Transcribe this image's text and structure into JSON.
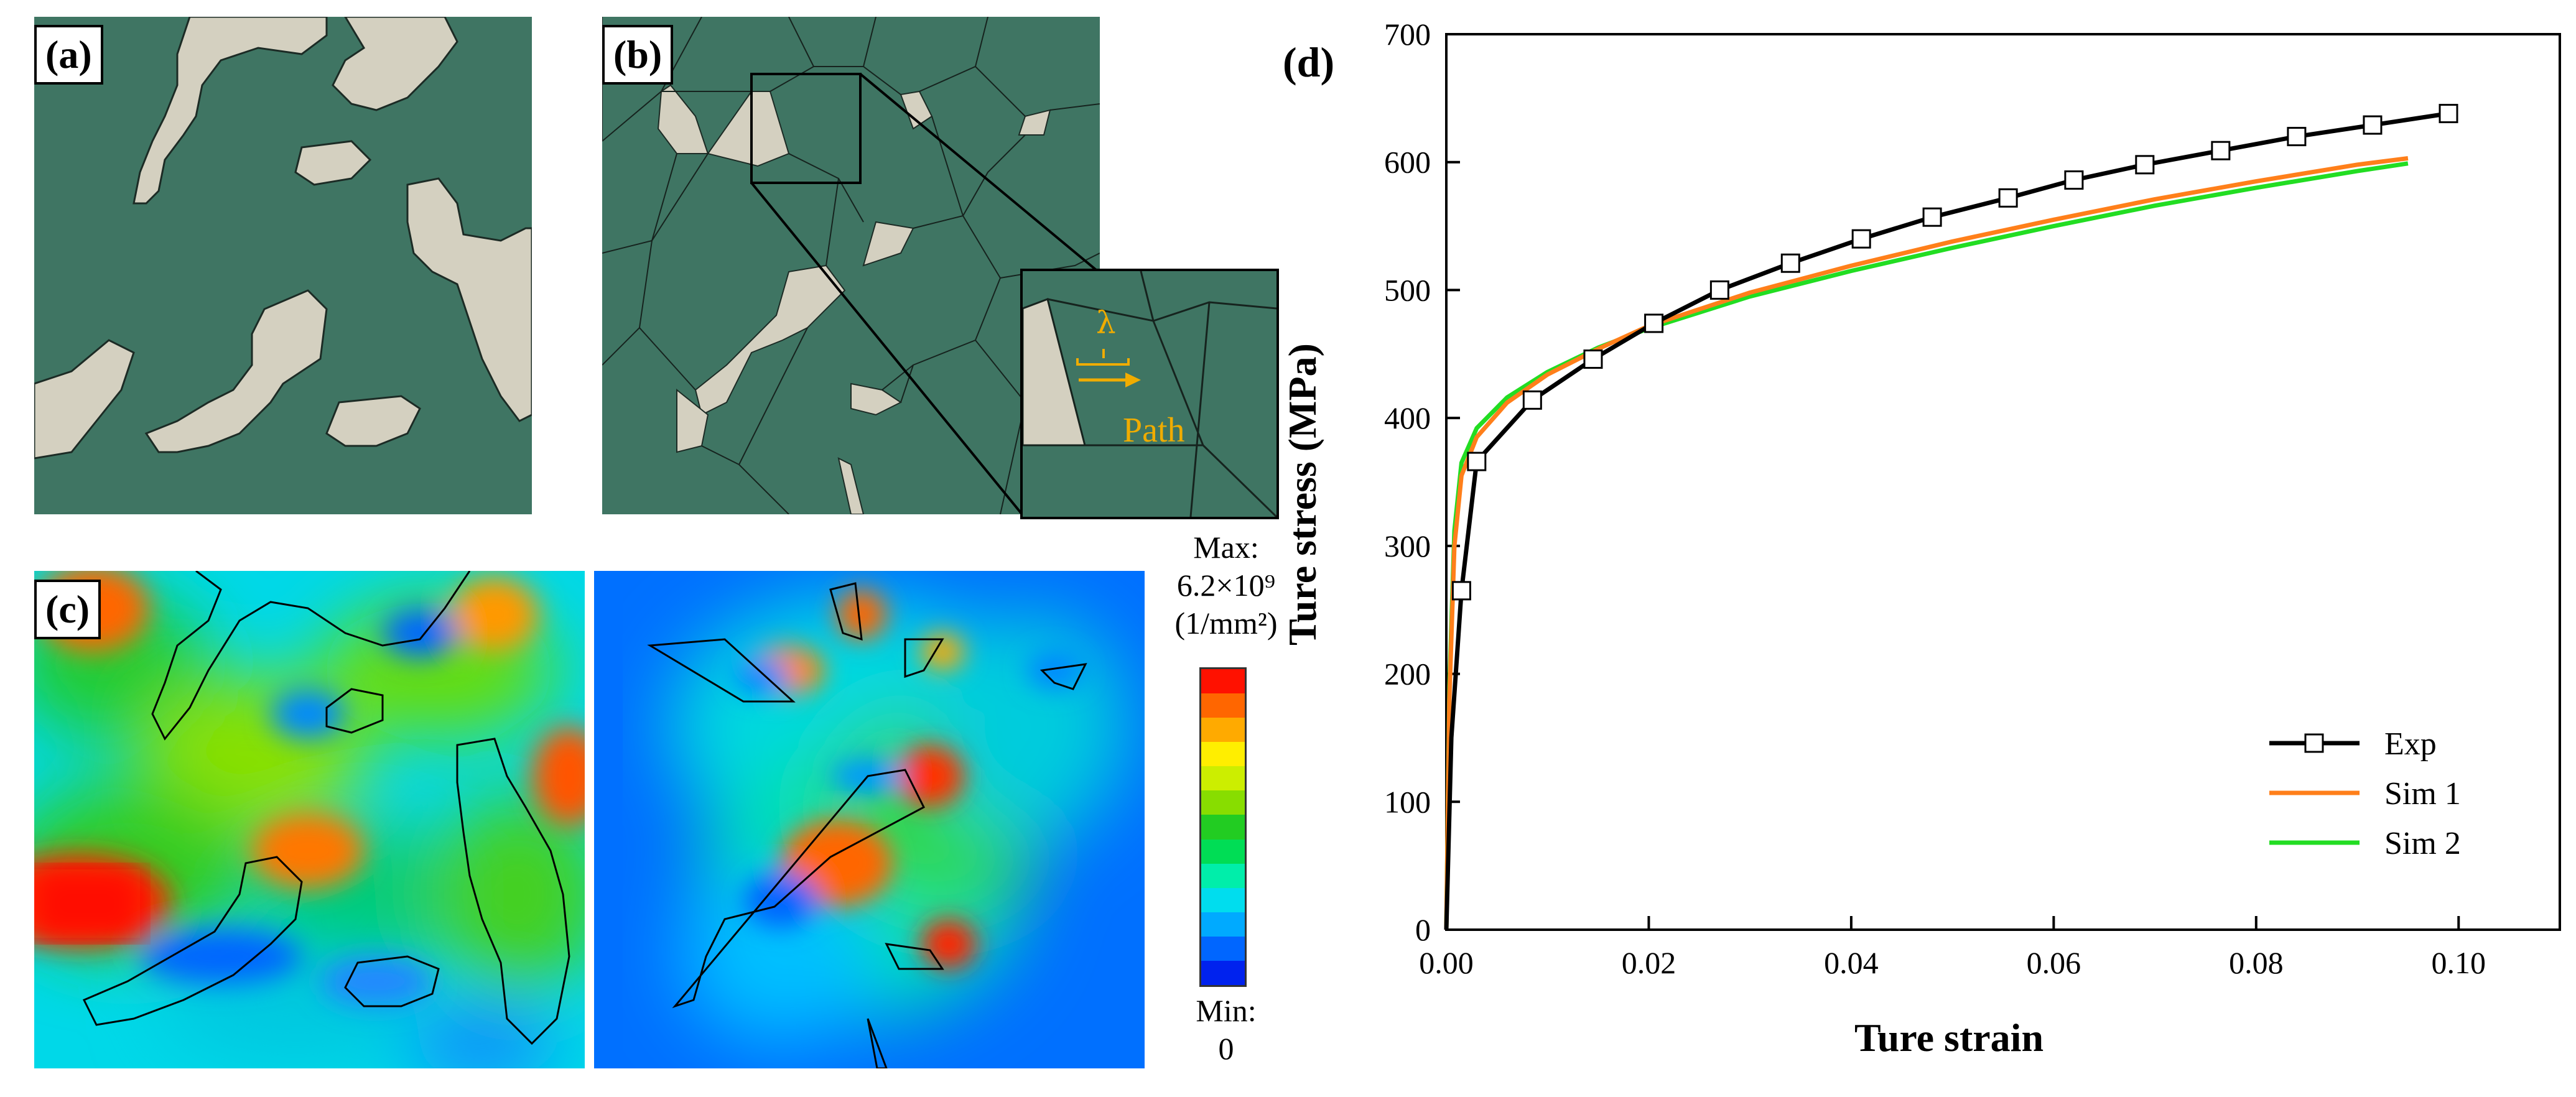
{
  "panel_labels": {
    "a": "(a)",
    "b": "(b)",
    "c": "(c)",
    "d": "(d)"
  },
  "inset": {
    "lambda_symbol": "λ",
    "path_label": "Path"
  },
  "colorbar": {
    "max_label": "Max:",
    "max_value": "6.2×10⁹",
    "unit": "(1/mm²)",
    "min_label": "Min:",
    "min_value": "0",
    "colors": [
      "#0022ee",
      "#0066ff",
      "#00aaff",
      "#00ddee",
      "#00eeaa",
      "#00dd55",
      "#22cc22",
      "#88dd00",
      "#ccee00",
      "#ffee00",
      "#ffaa00",
      "#ff6600",
      "#ff1100"
    ]
  },
  "colors": {
    "matrix": "#3f7563",
    "phase": "#d4d0c0",
    "accent": "#f0ac00"
  },
  "chart_data": {
    "type": "line",
    "xlabel": "Ture strain",
    "ylabel": "Ture stress (MPa)",
    "xlim": [
      0,
      0.11
    ],
    "ylim": [
      0,
      700
    ],
    "xticks": [
      "0.00",
      "0.02",
      "0.04",
      "0.06",
      "0.08",
      "0.10"
    ],
    "yticks": [
      "0",
      "100",
      "200",
      "300",
      "400",
      "500",
      "600",
      "700"
    ],
    "legend_position": "bottom-right",
    "series": [
      {
        "name": "Exp",
        "color": "#000000",
        "marker": "square",
        "x": [
          0,
          0.0005,
          0.0015,
          0.003,
          0.0085,
          0.0145,
          0.0205,
          0.027,
          0.034,
          0.041,
          0.048,
          0.0555,
          0.062,
          0.069,
          0.0765,
          0.084,
          0.0915,
          0.099
        ],
        "y": [
          0,
          150,
          265,
          366,
          414,
          446,
          474,
          500,
          521,
          540,
          557,
          572,
          586,
          598,
          609,
          620,
          629,
          638
        ]
      },
      {
        "name": "Sim 1",
        "color": "#ff7f1a",
        "marker": "none",
        "x": [
          0,
          0.0003,
          0.0008,
          0.0015,
          0.003,
          0.006,
          0.01,
          0.015,
          0.02,
          0.03,
          0.04,
          0.05,
          0.06,
          0.07,
          0.08,
          0.09,
          0.095
        ],
        "y": [
          0,
          180,
          300,
          355,
          385,
          412,
          434,
          454,
          472,
          498,
          519,
          538,
          555,
          571,
          585,
          598,
          603
        ]
      },
      {
        "name": "Sim 2",
        "color": "#22dd22",
        "marker": "none",
        "x": [
          0,
          0.0003,
          0.0008,
          0.0015,
          0.003,
          0.006,
          0.01,
          0.015,
          0.02,
          0.03,
          0.04,
          0.05,
          0.06,
          0.07,
          0.08,
          0.09,
          0.095
        ],
        "y": [
          0,
          190,
          312,
          365,
          392,
          416,
          436,
          455,
          470,
          495,
          515,
          533,
          550,
          566,
          580,
          593,
          599
        ]
      }
    ]
  }
}
